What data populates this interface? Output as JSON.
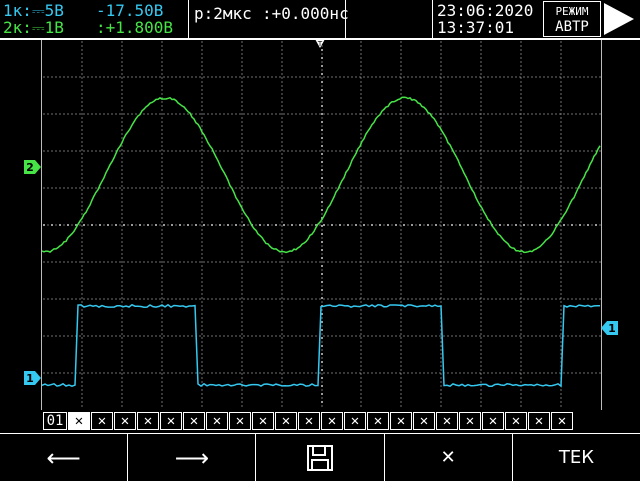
{
  "header": {
    "ch1_label": "1к:⎓5В",
    "ch1_offset": "-17.50В",
    "ch2_label": "2к:⎓1В",
    "ch2_offset": ":+1.800В",
    "timebase": "р:2мкс",
    "trigger_offset": ":+0.000нс",
    "date": "23:06:2020",
    "time": "13:37:01",
    "mode_line1": "РЕЖИМ",
    "mode_line2": "АВТР",
    "run_state": "run"
  },
  "markers": {
    "ch2_marker": "2",
    "ch1_marker": "1",
    "trigger_level_marker": "1",
    "trigger_position_marker": "T"
  },
  "channel_bar": {
    "label": "01",
    "cells": [
      "✕",
      "✕",
      "✕",
      "✕",
      "✕",
      "✕",
      "✕",
      "✕",
      "✕",
      "✕",
      "✕",
      "✕",
      "✕",
      "✕",
      "✕",
      "✕",
      "✕",
      "✕",
      "✕",
      "✕",
      "✕",
      "✕"
    ]
  },
  "softkeys": {
    "left_label": "⟵",
    "right_label": "⟶",
    "save_label": "save",
    "close_label": "✕",
    "tek_label": "ТЕК"
  },
  "colors": {
    "ch1": "#35c8f0",
    "ch2": "#46e446",
    "grid": "#9a9a9a",
    "background": "#000000"
  }
}
